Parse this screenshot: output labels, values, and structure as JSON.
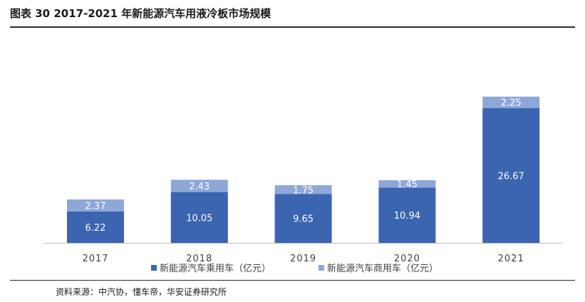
{
  "header": {
    "title": "图表 30 2017-2021 年新能源汽车用液冷板市场规模"
  },
  "footer": {
    "source": "资料来源：中汽协，懂车帝，华安证券研究所"
  },
  "colors": {
    "passenger": "#3b64b1",
    "commercial": "#8ea7d9",
    "axis": "#bfbfbf"
  },
  "chart_data": {
    "type": "bar",
    "stacked": true,
    "categories": [
      "2017",
      "2018",
      "2019",
      "2020",
      "2021"
    ],
    "series": [
      {
        "name": "新能源汽车乘用车（亿元）",
        "values": [
          6.22,
          10.05,
          9.65,
          10.94,
          26.67
        ]
      },
      {
        "name": "新能源汽车商用车（亿元）",
        "values": [
          2.37,
          2.43,
          1.75,
          1.45,
          2.25
        ]
      }
    ],
    "data_labels": true,
    "ylim": [
      0,
      30
    ],
    "grid": false,
    "y_axis_visible": false,
    "legend_position": "bottom"
  }
}
